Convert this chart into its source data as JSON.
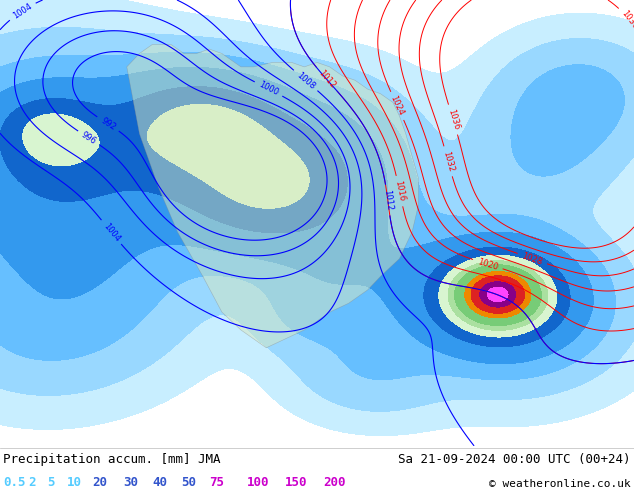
{
  "title_left": "Precipitation accum. [mm] JMA",
  "title_right": "Sa 21-09-2024 00:00 UTC (00+24)",
  "copyright": "© weatheronline.co.uk",
  "label_strings": [
    "0.5",
    "2",
    "5",
    "10",
    "20",
    "30",
    "40",
    "50",
    "75",
    "100",
    "150",
    "200"
  ],
  "label_colors": [
    "#55ccff",
    "#55ccff",
    "#55ccff",
    "#55ccff",
    "#3355cc",
    "#3355cc",
    "#3355cc",
    "#3355cc",
    "#cc00cc",
    "#cc00cc",
    "#cc00cc",
    "#cc00cc"
  ],
  "precip_levels": [
    0.5,
    2,
    5,
    10,
    20,
    30,
    40,
    50,
    75,
    100,
    150,
    200
  ],
  "precip_colors": [
    "#c8eeff",
    "#99d8ff",
    "#66bfff",
    "#3399ee",
    "#1166cc",
    "#d8f5d0",
    "#aae0a0",
    "#77cc77",
    "#ee8800",
    "#dd2222",
    "#880088",
    "#ff44ff"
  ],
  "ocean_bg": "#e8f0f8",
  "land_color": "#d8e8c0",
  "text_color": "#000000",
  "font_size_title": 9,
  "font_size_labels": 9,
  "fig_width": 6.34,
  "fig_height": 4.9,
  "dpi": 100
}
